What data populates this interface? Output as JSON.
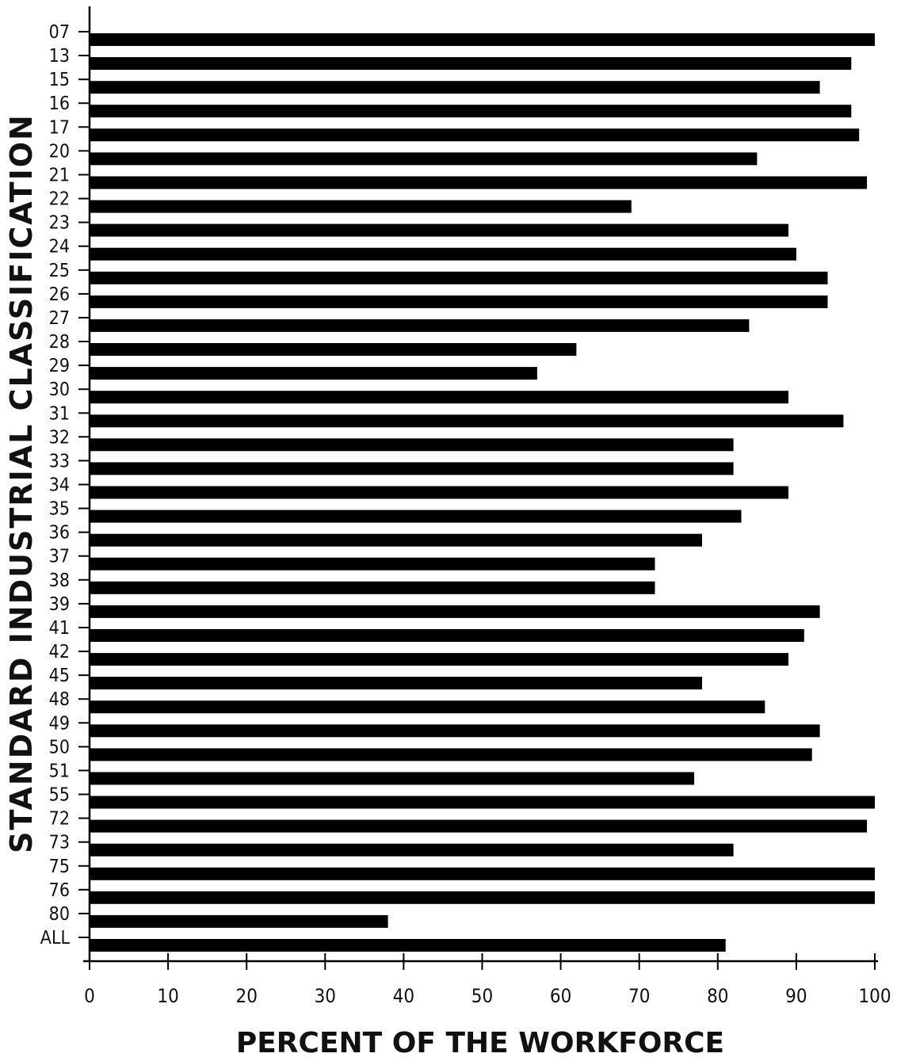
{
  "chart_data": {
    "type": "bar",
    "orientation": "horizontal",
    "xlabel": "PERCENT OF THE WORKFORCE",
    "ylabel": "STANDARD INDUSTRIAL CLASSIFICATION",
    "xlim": [
      0,
      100
    ],
    "x_ticks": [
      0,
      10,
      20,
      30,
      40,
      50,
      60,
      70,
      80,
      90,
      100
    ],
    "grid": false,
    "legend": "none",
    "bar_color": "#000000",
    "categories": [
      "07",
      "13",
      "15",
      "16",
      "17",
      "20",
      "21",
      "22",
      "23",
      "24",
      "25",
      "26",
      "27",
      "28",
      "29",
      "30",
      "31",
      "32",
      "33",
      "34",
      "35",
      "36",
      "37",
      "38",
      "39",
      "41",
      "42",
      "45",
      "48",
      "49",
      "50",
      "51",
      "55",
      "72",
      "73",
      "75",
      "76",
      "80",
      "ALL"
    ],
    "values": [
      100,
      97,
      93,
      97,
      98,
      85,
      99,
      69,
      89,
      90,
      94,
      94,
      84,
      62,
      57,
      89,
      96,
      82,
      82,
      89,
      83,
      78,
      72,
      72,
      93,
      91,
      89,
      78,
      86,
      93,
      92,
      77,
      100,
      99,
      82,
      100,
      100,
      38,
      81
    ]
  }
}
